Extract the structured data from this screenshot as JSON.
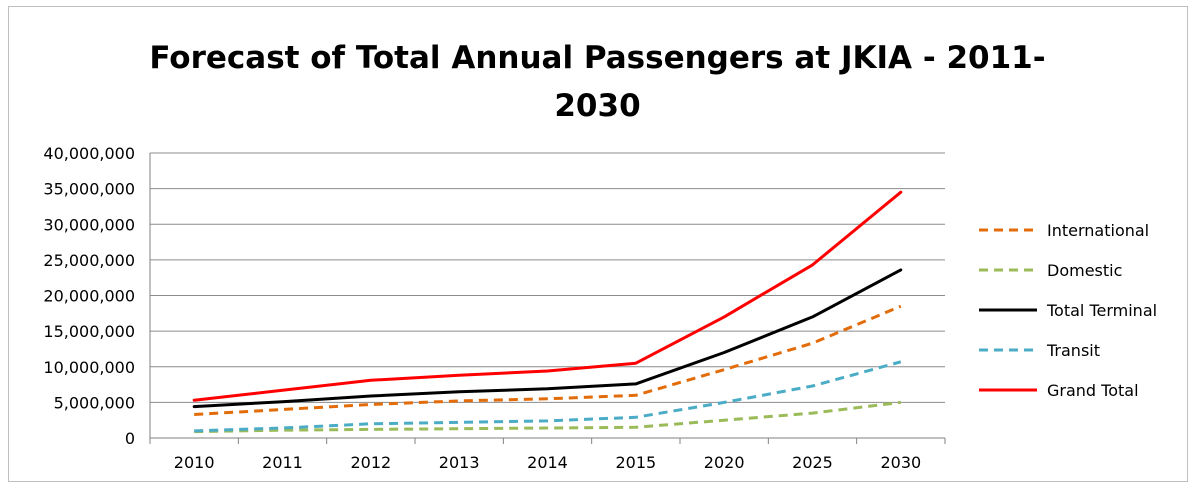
{
  "chart_data": {
    "type": "line",
    "title_lines": [
      "Forecast of Total Annual Passengers at JKIA - 2011-",
      "2030"
    ],
    "categories": [
      "2010",
      "2011",
      "2012",
      "2013",
      "2014",
      "2015",
      "2020",
      "2025",
      "2030"
    ],
    "y_ticks": [
      "0",
      "5,000,000",
      "10,000,000",
      "15,000,000",
      "20,000,000",
      "25,000,000",
      "30,000,000",
      "35,000,000",
      "40,000,000"
    ],
    "ylim": [
      0,
      40000000
    ],
    "grid": "horizontal",
    "legend_position": "right",
    "series": [
      {
        "name": "International",
        "color": "#e36c0a",
        "dash": "dashed",
        "values": [
          3300000,
          4000000,
          4700000,
          5200000,
          5500000,
          6000000,
          9600000,
          13300000,
          18500000
        ]
      },
      {
        "name": "Domestic",
        "color": "#9bbb59",
        "dash": "dashed",
        "values": [
          900000,
          1100000,
          1200000,
          1300000,
          1400000,
          1500000,
          2500000,
          3500000,
          5000000
        ]
      },
      {
        "name": "Total Terminal",
        "color": "#000000",
        "dash": "solid",
        "values": [
          4400000,
          5100000,
          5900000,
          6500000,
          6900000,
          7600000,
          12000000,
          17000000,
          23600000
        ]
      },
      {
        "name": "Transit",
        "color": "#4bacc6",
        "dash": "dashed",
        "values": [
          1000000,
          1400000,
          2000000,
          2200000,
          2400000,
          2900000,
          5000000,
          7300000,
          10700000
        ]
      },
      {
        "name": "Grand Total",
        "color": "#ff0000",
        "dash": "solid",
        "values": [
          5300000,
          6700000,
          8100000,
          8800000,
          9400000,
          10500000,
          17000000,
          24300000,
          34500000
        ]
      }
    ]
  }
}
